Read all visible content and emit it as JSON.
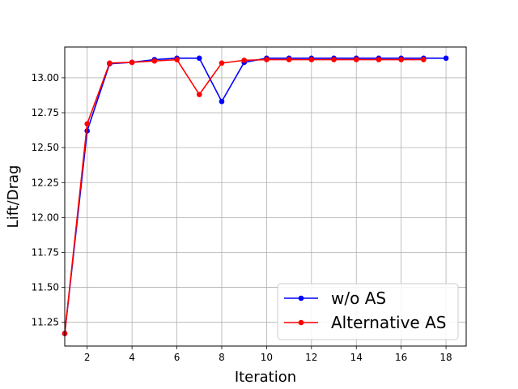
{
  "chart_data": {
    "type": "line",
    "title": "",
    "xlabel": "Iteration",
    "ylabel": "Lift/Drag",
    "xlim": [
      1,
      18.9
    ],
    "ylim": [
      11.08,
      13.22
    ],
    "x_ticks": [
      2,
      4,
      6,
      8,
      10,
      12,
      14,
      16,
      18
    ],
    "y_ticks": [
      11.25,
      11.5,
      11.75,
      12.0,
      12.25,
      12.5,
      12.75,
      13.0
    ],
    "y_tick_labels": [
      "11.25",
      "11.50",
      "11.75",
      "12.00",
      "12.25",
      "12.50",
      "12.75",
      "13.00"
    ],
    "grid": true,
    "legend_position": "lower-right",
    "series": [
      {
        "name": "w/o AS",
        "color": "#0000ff",
        "x": [
          1,
          2,
          3,
          4,
          5,
          6,
          7,
          8,
          9,
          10,
          11,
          12,
          13,
          14,
          15,
          16,
          17,
          18
        ],
        "y": [
          11.17,
          12.62,
          13.1,
          13.11,
          13.13,
          13.14,
          13.14,
          12.83,
          13.11,
          13.14,
          13.14,
          13.14,
          13.14,
          13.14,
          13.14,
          13.14,
          13.14,
          13.14
        ]
      },
      {
        "name": "Alternative AS",
        "color": "#ff0000",
        "x": [
          1,
          2,
          3,
          4,
          5,
          6,
          7,
          8,
          9,
          10,
          11,
          12,
          13,
          14,
          15,
          16,
          17
        ],
        "y": [
          11.17,
          12.67,
          13.105,
          13.11,
          13.12,
          13.13,
          12.88,
          13.105,
          13.125,
          13.13,
          13.13,
          13.13,
          13.13,
          13.13,
          13.13,
          13.13,
          13.13
        ]
      }
    ]
  }
}
